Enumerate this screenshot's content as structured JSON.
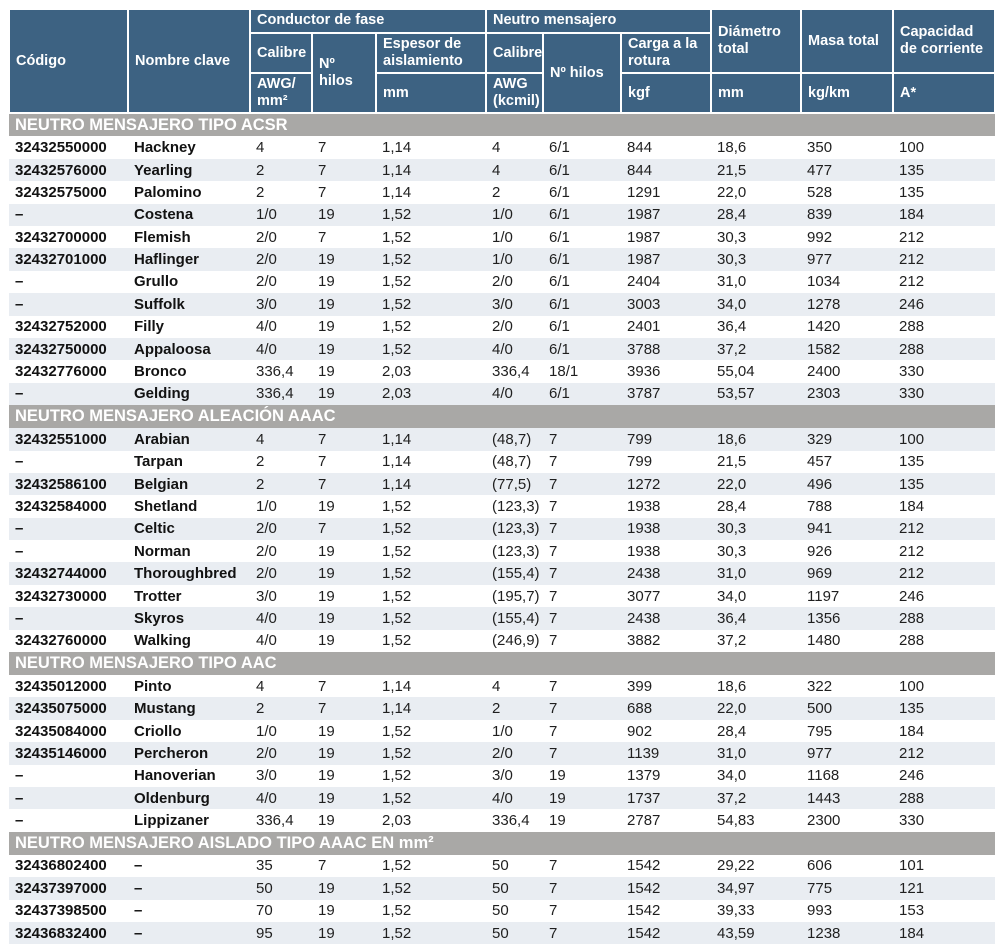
{
  "colors": {
    "header_bg": "#3d6282",
    "section_bg": "#a9a8a6",
    "stripe_bg": "#e9edf2",
    "text": "#1f1f1f"
  },
  "header": {
    "codigo": "Código",
    "nombre_clave": "Nombre clave",
    "conductor_fase": "Conductor de fase",
    "neutro_mensajero": "Neutro mensajero",
    "calibre_fase": "Calibre",
    "n_hilos_fase": "Nº\nhilos",
    "espesor": "Espesor de\naislamiento",
    "calibre_neutro": "Calibre",
    "n_hilos_neutro": "Nº hilos",
    "carga_rotura": "Carga a la\nrotura",
    "diametro_total": "Diámetro\ntotal",
    "masa_total": "Masa total",
    "capacidad": "Capacidad\nde corriente",
    "unit_calibre_fase": "AWG/\nmm²",
    "unit_espesor": "mm",
    "unit_calibre_neutro": "AWG\n(kcmil)",
    "unit_carga": "kgf",
    "unit_diametro": "mm",
    "unit_masa": "kg/km",
    "unit_capacidad": "A*"
  },
  "table": {
    "sections": [
      {
        "title": "NEUTRO MENSAJERO TIPO ACSR",
        "rows": [
          [
            "32432550000",
            "Hackney",
            "4",
            "7",
            "1,14",
            "4",
            "6/1",
            "844",
            "18,6",
            "350",
            "100"
          ],
          [
            "32432576000",
            "Yearling",
            "2",
            "7",
            "1,14",
            "4",
            "6/1",
            "844",
            "21,5",
            "477",
            "135"
          ],
          [
            "32432575000",
            "Palomino",
            "2",
            "7",
            "1,14",
            "2",
            "6/1",
            "1291",
            "22,0",
            "528",
            "135"
          ],
          [
            "–",
            "Costena",
            "1/0",
            "19",
            "1,52",
            "1/0",
            "6/1",
            "1987",
            "28,4",
            "839",
            "184"
          ],
          [
            "32432700000",
            "Flemish",
            "2/0",
            "7",
            "1,52",
            "1/0",
            "6/1",
            "1987",
            "30,3",
            "992",
            "212"
          ],
          [
            "32432701000",
            "Haflinger",
            "2/0",
            "19",
            "1,52",
            "1/0",
            "6/1",
            "1987",
            "30,3",
            "977",
            "212"
          ],
          [
            "–",
            "Grullo",
            "2/0",
            "19",
            "1,52",
            "2/0",
            "6/1",
            "2404",
            "31,0",
            "1034",
            "212"
          ],
          [
            "–",
            "Suffolk",
            "3/0",
            "19",
            "1,52",
            "3/0",
            "6/1",
            "3003",
            "34,0",
            "1278",
            "246"
          ],
          [
            "32432752000",
            "Filly",
            "4/0",
            "19",
            "1,52",
            "2/0",
            "6/1",
            "2401",
            "36,4",
            "1420",
            "288"
          ],
          [
            "32432750000",
            "Appaloosa",
            "4/0",
            "19",
            "1,52",
            "4/0",
            "6/1",
            "3788",
            "37,2",
            "1582",
            "288"
          ],
          [
            "32432776000",
            "Bronco",
            "336,4",
            "19",
            "2,03",
            "336,4",
            "18/1",
            "3936",
            "55,04",
            "2400",
            "330"
          ],
          [
            "–",
            "Gelding",
            "336,4",
            "19",
            "2,03",
            "4/0",
            "6/1",
            "3787",
            "53,57",
            "2303",
            "330"
          ]
        ]
      },
      {
        "title": "NEUTRO MENSAJERO ALEACIÓN AAAC",
        "rows": [
          [
            "32432551000",
            "Arabian",
            "4",
            "7",
            "1,14",
            "(48,7)",
            "7",
            "799",
            "18,6",
            "329",
            "100"
          ],
          [
            "–",
            "Tarpan",
            "2",
            "7",
            "1,14",
            "(48,7)",
            "7",
            "799",
            "21,5",
            "457",
            "135"
          ],
          [
            "32432586100",
            "Belgian",
            "2",
            "7",
            "1,14",
            "(77,5)",
            "7",
            "1272",
            "22,0",
            "496",
            "135"
          ],
          [
            "32432584000",
            "Shetland",
            "1/0",
            "19",
            "1,52",
            "(123,3)",
            "7",
            "1938",
            "28,4",
            "788",
            "184"
          ],
          [
            "–",
            "Celtic",
            "2/0",
            "7",
            "1,52",
            "(123,3)",
            "7",
            "1938",
            "30,3",
            "941",
            "212"
          ],
          [
            "–",
            "Norman",
            "2/0",
            "19",
            "1,52",
            "(123,3)",
            "7",
            "1938",
            "30,3",
            "926",
            "212"
          ],
          [
            "32432744000",
            "Thoroughbred",
            "2/0",
            "19",
            "1,52",
            "(155,4)",
            "7",
            "2438",
            "31,0",
            "969",
            "212"
          ],
          [
            "32432730000",
            "Trotter",
            "3/0",
            "19",
            "1,52",
            "(195,7)",
            "7",
            "3077",
            "34,0",
            "1197",
            "246"
          ],
          [
            "–",
            "Skyros",
            "4/0",
            "19",
            "1,52",
            "(155,4)",
            "7",
            "2438",
            "36,4",
            "1356",
            "288"
          ],
          [
            "32432760000",
            "Walking",
            "4/0",
            "19",
            "1,52",
            "(246,9)",
            "7",
            "3882",
            "37,2",
            "1480",
            "288"
          ]
        ]
      },
      {
        "title": "NEUTRO MENSAJERO TIPO AAC",
        "rows": [
          [
            "32435012000",
            "Pinto",
            "4",
            "7",
            "1,14",
            "4",
            "7",
            "399",
            "18,6",
            "322",
            "100"
          ],
          [
            "32435075000",
            "Mustang",
            "2",
            "7",
            "1,14",
            "2",
            "7",
            "688",
            "22,0",
            "500",
            "135"
          ],
          [
            "32435084000",
            "Criollo",
            "1/0",
            "19",
            "1,52",
            "1/0",
            "7",
            "902",
            "28,4",
            "795",
            "184"
          ],
          [
            "32435146000",
            "Percheron",
            "2/0",
            "19",
            "1,52",
            "2/0",
            "7",
            "1139",
            "31,0",
            "977",
            "212"
          ],
          [
            "–",
            "Hanoverian",
            "3/0",
            "19",
            "1,52",
            "3/0",
            "19",
            "1379",
            "34,0",
            "1168",
            "246"
          ],
          [
            "–",
            "Oldenburg",
            "4/0",
            "19",
            "1,52",
            "4/0",
            "19",
            "1737",
            "37,2",
            "1443",
            "288"
          ],
          [
            "–",
            "Lippizaner",
            "336,4",
            "19",
            "2,03",
            "336,4",
            "19",
            "2787",
            "54,83",
            "2300",
            "330"
          ]
        ]
      },
      {
        "title": "NEUTRO MENSAJERO AISLADO TIPO AAAC EN mm²",
        "rows": [
          [
            "32436802400",
            "–",
            "35",
            "7",
            "1,52",
            "50",
            "7",
            "1542",
            "29,22",
            "606",
            "101"
          ],
          [
            "32437397000",
            "–",
            "50",
            "19",
            "1,52",
            "50",
            "7",
            "1542",
            "34,97",
            "775",
            "121"
          ],
          [
            "32437398500",
            "–",
            "70",
            "19",
            "1,52",
            "50",
            "7",
            "1542",
            "39,33",
            "993",
            "153"
          ],
          [
            "32436832400",
            "–",
            "95",
            "19",
            "1,52",
            "50",
            "7",
            "1542",
            "43,59",
            "1238",
            "184"
          ]
        ]
      }
    ]
  }
}
